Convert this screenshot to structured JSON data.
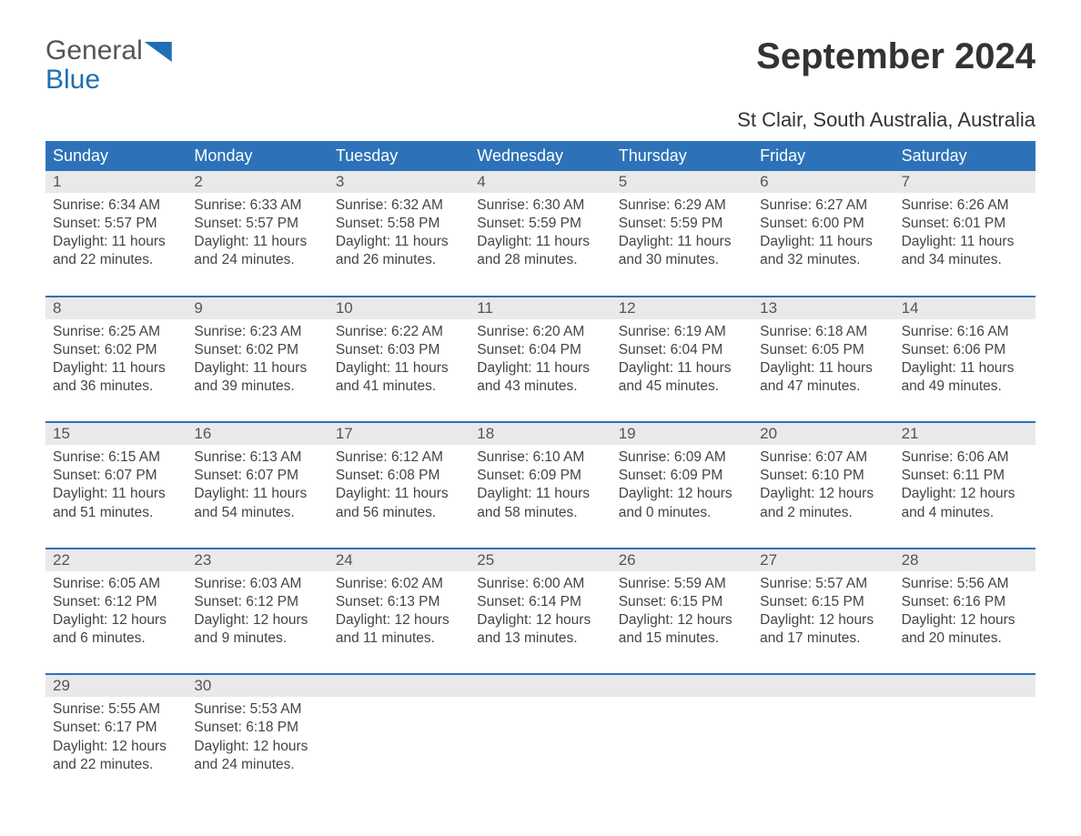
{
  "logo": {
    "line1": "General",
    "line2": "Blue"
  },
  "title": "September 2024",
  "subtitle": "St Clair, South Australia, Australia",
  "colors": {
    "header_bg": "#2d72b8",
    "header_text": "#ffffff",
    "daynum_bg": "#e9e9e9",
    "week_border": "#2d72b8",
    "body_text": "#444444",
    "logo_blue": "#1f6fb2"
  },
  "dayHeaders": [
    "Sunday",
    "Monday",
    "Tuesday",
    "Wednesday",
    "Thursday",
    "Friday",
    "Saturday"
  ],
  "weeks": [
    [
      {
        "n": "1",
        "sr": "6:34 AM",
        "ss": "5:57 PM",
        "dl": "11 hours and 22 minutes."
      },
      {
        "n": "2",
        "sr": "6:33 AM",
        "ss": "5:57 PM",
        "dl": "11 hours and 24 minutes."
      },
      {
        "n": "3",
        "sr": "6:32 AM",
        "ss": "5:58 PM",
        "dl": "11 hours and 26 minutes."
      },
      {
        "n": "4",
        "sr": "6:30 AM",
        "ss": "5:59 PM",
        "dl": "11 hours and 28 minutes."
      },
      {
        "n": "5",
        "sr": "6:29 AM",
        "ss": "5:59 PM",
        "dl": "11 hours and 30 minutes."
      },
      {
        "n": "6",
        "sr": "6:27 AM",
        "ss": "6:00 PM",
        "dl": "11 hours and 32 minutes."
      },
      {
        "n": "7",
        "sr": "6:26 AM",
        "ss": "6:01 PM",
        "dl": "11 hours and 34 minutes."
      }
    ],
    [
      {
        "n": "8",
        "sr": "6:25 AM",
        "ss": "6:02 PM",
        "dl": "11 hours and 36 minutes."
      },
      {
        "n": "9",
        "sr": "6:23 AM",
        "ss": "6:02 PM",
        "dl": "11 hours and 39 minutes."
      },
      {
        "n": "10",
        "sr": "6:22 AM",
        "ss": "6:03 PM",
        "dl": "11 hours and 41 minutes."
      },
      {
        "n": "11",
        "sr": "6:20 AM",
        "ss": "6:04 PM",
        "dl": "11 hours and 43 minutes."
      },
      {
        "n": "12",
        "sr": "6:19 AM",
        "ss": "6:04 PM",
        "dl": "11 hours and 45 minutes."
      },
      {
        "n": "13",
        "sr": "6:18 AM",
        "ss": "6:05 PM",
        "dl": "11 hours and 47 minutes."
      },
      {
        "n": "14",
        "sr": "6:16 AM",
        "ss": "6:06 PM",
        "dl": "11 hours and 49 minutes."
      }
    ],
    [
      {
        "n": "15",
        "sr": "6:15 AM",
        "ss": "6:07 PM",
        "dl": "11 hours and 51 minutes."
      },
      {
        "n": "16",
        "sr": "6:13 AM",
        "ss": "6:07 PM",
        "dl": "11 hours and 54 minutes."
      },
      {
        "n": "17",
        "sr": "6:12 AM",
        "ss": "6:08 PM",
        "dl": "11 hours and 56 minutes."
      },
      {
        "n": "18",
        "sr": "6:10 AM",
        "ss": "6:09 PM",
        "dl": "11 hours and 58 minutes."
      },
      {
        "n": "19",
        "sr": "6:09 AM",
        "ss": "6:09 PM",
        "dl": "12 hours and 0 minutes."
      },
      {
        "n": "20",
        "sr": "6:07 AM",
        "ss": "6:10 PM",
        "dl": "12 hours and 2 minutes."
      },
      {
        "n": "21",
        "sr": "6:06 AM",
        "ss": "6:11 PM",
        "dl": "12 hours and 4 minutes."
      }
    ],
    [
      {
        "n": "22",
        "sr": "6:05 AM",
        "ss": "6:12 PM",
        "dl": "12 hours and 6 minutes."
      },
      {
        "n": "23",
        "sr": "6:03 AM",
        "ss": "6:12 PM",
        "dl": "12 hours and 9 minutes."
      },
      {
        "n": "24",
        "sr": "6:02 AM",
        "ss": "6:13 PM",
        "dl": "12 hours and 11 minutes."
      },
      {
        "n": "25",
        "sr": "6:00 AM",
        "ss": "6:14 PM",
        "dl": "12 hours and 13 minutes."
      },
      {
        "n": "26",
        "sr": "5:59 AM",
        "ss": "6:15 PM",
        "dl": "12 hours and 15 minutes."
      },
      {
        "n": "27",
        "sr": "5:57 AM",
        "ss": "6:15 PM",
        "dl": "12 hours and 17 minutes."
      },
      {
        "n": "28",
        "sr": "5:56 AM",
        "ss": "6:16 PM",
        "dl": "12 hours and 20 minutes."
      }
    ],
    [
      {
        "n": "29",
        "sr": "5:55 AM",
        "ss": "6:17 PM",
        "dl": "12 hours and 22 minutes."
      },
      {
        "n": "30",
        "sr": "5:53 AM",
        "ss": "6:18 PM",
        "dl": "12 hours and 24 minutes."
      },
      null,
      null,
      null,
      null,
      null
    ]
  ],
  "labels": {
    "sunrise": "Sunrise: ",
    "sunset": "Sunset: ",
    "daylight": "Daylight: "
  }
}
